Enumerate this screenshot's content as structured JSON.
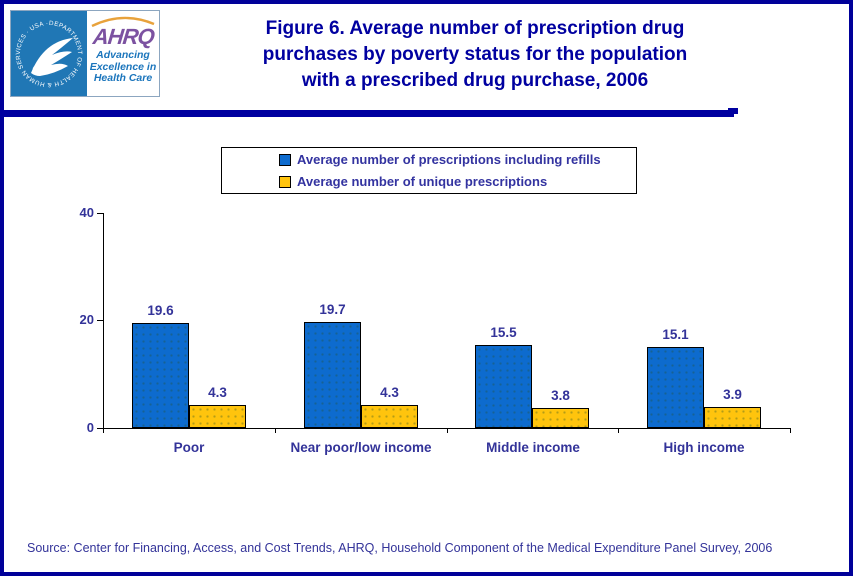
{
  "header": {
    "logo": {
      "seal_text": "DEPARTMENT OF HEALTH & HUMAN SERVICES · USA ·",
      "acronym": "AHRQ",
      "tagline_lines": [
        "Advancing",
        "Excellence in",
        "Health Care"
      ]
    },
    "title_lines": [
      "Figure 6. Average number of prescription drug",
      "purchases by poverty status for the population",
      "with a prescribed drug purchase, 2006"
    ]
  },
  "legend": {
    "items": [
      {
        "label": "Average number of prescriptions including refills",
        "color": "#0d6bce"
      },
      {
        "label": "Average number of unique prescriptions",
        "color": "#ffc40d"
      }
    ]
  },
  "chart_data": {
    "type": "bar",
    "categories": [
      "Poor",
      "Near poor/low income",
      "Middle income",
      "High income"
    ],
    "series": [
      {
        "name": "Average number of prescriptions including refills",
        "color": "#0d6bce",
        "values": [
          19.6,
          19.7,
          15.5,
          15.1
        ]
      },
      {
        "name": "Average number of unique prescriptions",
        "color": "#ffc40d",
        "values": [
          4.3,
          4.3,
          3.8,
          3.9
        ]
      }
    ],
    "title": "Figure 6. Average number of prescription drug purchases by poverty status for the population with a prescribed drug purchase, 2006",
    "xlabel": "",
    "ylabel": "",
    "ylim": [
      0,
      40
    ],
    "yticks": [
      0,
      20,
      40
    ],
    "grid": false,
    "legend_position": "top",
    "value_labels": true
  },
  "source_text": "Source: Center for Financing, Access, and Cost Trends, AHRQ, Household Component of the Medical Expenditure Panel Survey, 2006",
  "colors": {
    "frame_navy": "#000099",
    "title_blue": "#0000a0",
    "chart_text": "#333399",
    "bar_blue": "#0d6bce",
    "bar_yellow": "#ffc40d",
    "seal_blue": "#2077b5",
    "ahrq_purple": "#7c52a1",
    "tagline_blue": "#1b75bc",
    "arc_orange": "#e8a23b"
  }
}
